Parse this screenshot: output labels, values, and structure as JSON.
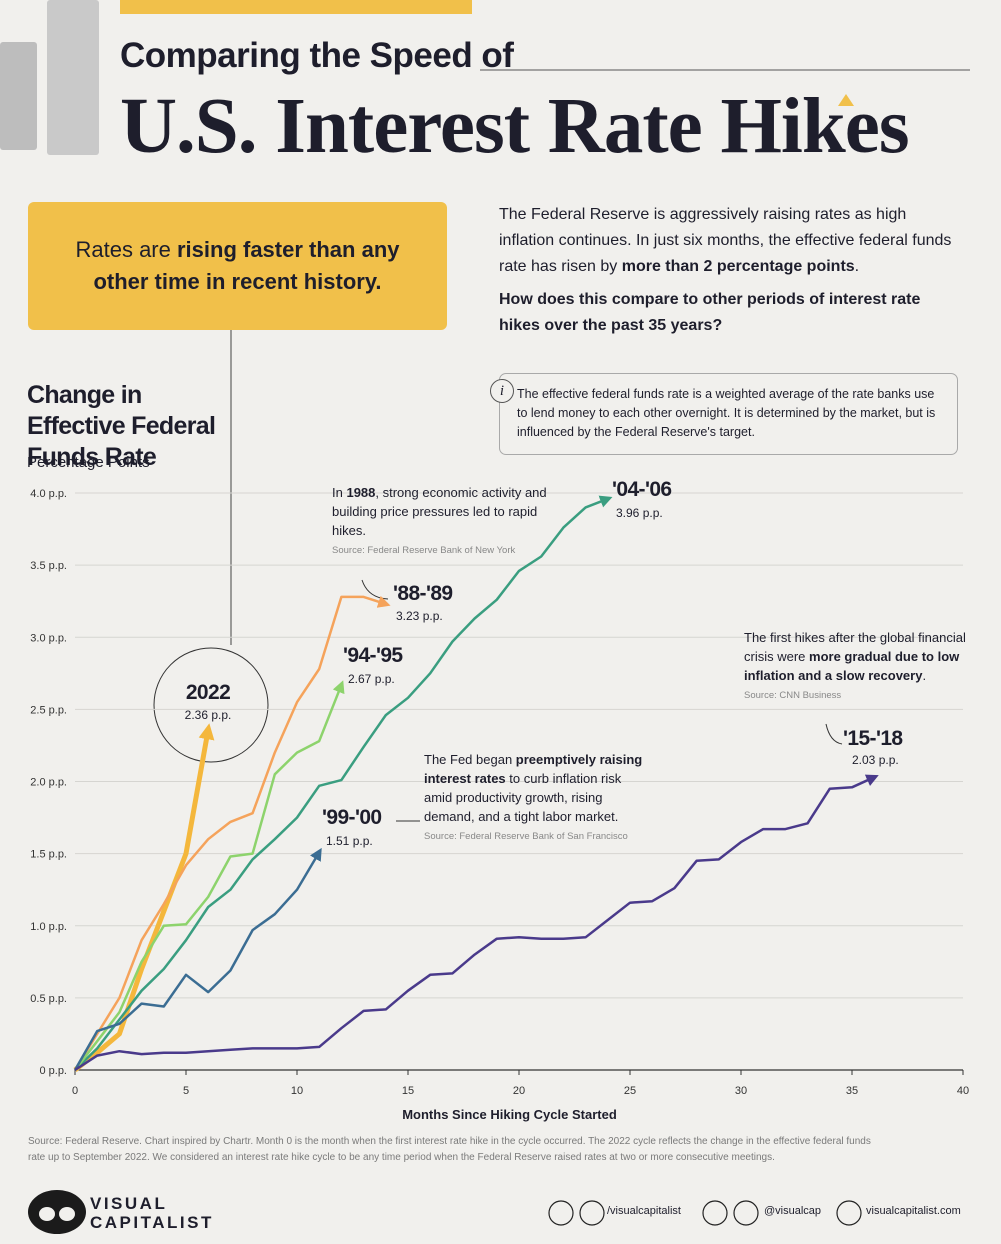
{
  "header": {
    "kicker": "Comparing the Speed of",
    "title": "U.S. Interest Rate Hikes"
  },
  "callout": {
    "parts": [
      "Rates are ",
      "rising faster than any other time in recent history."
    ]
  },
  "intro": {
    "parts": [
      "The Federal Reserve is aggressively raising rates as high inflation continues. In just six months, the effective federal funds rate has risen by ",
      "more than 2 percentage points",
      "."
    ],
    "question": "How does this compare to other periods of interest rate hikes over the past 35 years?"
  },
  "info": {
    "icon": "i",
    "text": "The effective federal funds rate is a weighted average of the rate banks use to lend money to each other overnight. It is determined by the market, but is influenced by the Federal Reserve's target."
  },
  "chart_data": {
    "type": "line",
    "title": "Change in Effective Federal Funds Rate",
    "y_label": "Percentage Points",
    "x_label": "Months Since Hiking Cycle Started",
    "x": [
      0,
      1,
      2,
      3,
      4,
      5,
      6,
      7,
      8,
      9,
      10,
      11,
      12,
      13,
      14,
      15,
      16,
      17,
      18,
      19,
      20,
      21,
      22,
      23,
      24,
      25,
      26,
      27,
      28,
      29,
      30,
      31,
      32,
      33,
      34,
      35,
      36
    ],
    "xlim": [
      0,
      40
    ],
    "xticks": [
      0,
      5,
      10,
      15,
      20,
      25,
      30,
      35,
      40
    ],
    "ylim": [
      0,
      4
    ],
    "yticks": [
      {
        "value": 0,
        "label": "0 p.p."
      },
      {
        "value": 0.5,
        "label": "0.5 p.p."
      },
      {
        "value": 1,
        "label": "1.0 p.p."
      },
      {
        "value": 1.5,
        "label": "1.5 p.p."
      },
      {
        "value": 2,
        "label": "2.0 p.p."
      },
      {
        "value": 2.5,
        "label": "2.5 p.p."
      },
      {
        "value": 3,
        "label": "3.0 p.p."
      },
      {
        "value": 3.5,
        "label": "3.5 p.p."
      },
      {
        "value": 4,
        "label": "4.0 p.p."
      }
    ],
    "grid": true,
    "series": [
      {
        "name": "2022",
        "color": "#f4b73c",
        "values": [
          0,
          0.12,
          0.25,
          0.7,
          1.1,
          1.5,
          2.36,
          null,
          null,
          null,
          null,
          null,
          null,
          null,
          null,
          null,
          null,
          null,
          null,
          null,
          null,
          null,
          null,
          null,
          null,
          null,
          null,
          null,
          null,
          null,
          null,
          null,
          null,
          null,
          null,
          null,
          null
        ],
        "value_labels": [
          null,
          null,
          null,
          null,
          null,
          null,
          "2.36 p.p.",
          null,
          null,
          null,
          null,
          null,
          null,
          null,
          null,
          null,
          null,
          null,
          null,
          null,
          null,
          null,
          null,
          null,
          null,
          null,
          null,
          null,
          null,
          null,
          null,
          null,
          null,
          null,
          null,
          null,
          null
        ]
      },
      {
        "name": "'04-'06",
        "color": "#3a9e80",
        "values": [
          0,
          0.15,
          0.35,
          0.55,
          0.7,
          0.9,
          1.13,
          1.25,
          1.46,
          1.6,
          1.75,
          1.97,
          2.01,
          2.24,
          2.46,
          2.58,
          2.75,
          2.97,
          3.13,
          3.26,
          3.46,
          3.56,
          3.76,
          3.9,
          3.96,
          null,
          null,
          null,
          null,
          null,
          null,
          null,
          null,
          null,
          null,
          null,
          null
        ],
        "value_labels": [
          null,
          null,
          null,
          null,
          null,
          null,
          null,
          null,
          null,
          null,
          null,
          null,
          null,
          null,
          null,
          null,
          null,
          null,
          null,
          null,
          null,
          null,
          null,
          null,
          "3.96 p.p.",
          null,
          null,
          null,
          null,
          null,
          null,
          null,
          null,
          null,
          null,
          null,
          null
        ]
      },
      {
        "name": "'88-'89",
        "color": "#f5a35b",
        "values": [
          0,
          0.25,
          0.5,
          0.9,
          1.15,
          1.42,
          1.6,
          1.72,
          1.78,
          2.2,
          2.55,
          2.78,
          3.28,
          3.28,
          3.23,
          null,
          null,
          null,
          null,
          null,
          null,
          null,
          null,
          null,
          null,
          null,
          null,
          null,
          null,
          null,
          null,
          null,
          null,
          null,
          null,
          null,
          null
        ],
        "value_labels": [
          null,
          null,
          null,
          null,
          null,
          null,
          null,
          null,
          null,
          null,
          null,
          null,
          null,
          null,
          "3.23 p.p.",
          null,
          null,
          null,
          null,
          null,
          null,
          null,
          null,
          null,
          null,
          null,
          null,
          null,
          null,
          null,
          null,
          null,
          null,
          null,
          null,
          null,
          null
        ]
      },
      {
        "name": "'94-'95",
        "color": "#8dd36c",
        "values": [
          0,
          0.2,
          0.4,
          0.75,
          1,
          1.01,
          1.2,
          1.48,
          1.5,
          2.05,
          2.2,
          2.28,
          2.67,
          null,
          null,
          null,
          null,
          null,
          null,
          null,
          null,
          null,
          null,
          null,
          null,
          null,
          null,
          null,
          null,
          null,
          null,
          null,
          null,
          null,
          null,
          null,
          null
        ],
        "value_labels": [
          null,
          null,
          null,
          null,
          null,
          null,
          null,
          null,
          null,
          null,
          null,
          null,
          "2.67 p.p.",
          null,
          null,
          null,
          null,
          null,
          null,
          null,
          null,
          null,
          null,
          null,
          null,
          null,
          null,
          null,
          null,
          null,
          null,
          null,
          null,
          null,
          null,
          null,
          null
        ]
      },
      {
        "name": "'99-'00",
        "color": "#3b6d93",
        "values": [
          0,
          0.27,
          0.32,
          0.46,
          0.44,
          0.66,
          0.54,
          0.69,
          0.97,
          1.08,
          1.25,
          1.51,
          null,
          null,
          null,
          null,
          null,
          null,
          null,
          null,
          null,
          null,
          null,
          null,
          null,
          null,
          null,
          null,
          null,
          null,
          null,
          null,
          null,
          null,
          null,
          null,
          null
        ],
        "value_labels": [
          null,
          null,
          null,
          null,
          null,
          null,
          null,
          null,
          null,
          null,
          null,
          "1.51 p.p.",
          null,
          null,
          null,
          null,
          null,
          null,
          null,
          null,
          null,
          null,
          null,
          null,
          null,
          null,
          null,
          null,
          null,
          null,
          null,
          null,
          null,
          null,
          null,
          null,
          null
        ]
      },
      {
        "name": "'15-'18",
        "color": "#4a3a8b",
        "values": [
          0,
          0.1,
          0.13,
          0.11,
          0.12,
          0.12,
          0.13,
          0.14,
          0.15,
          0.15,
          0.15,
          0.16,
          0.29,
          0.41,
          0.42,
          0.55,
          0.66,
          0.67,
          0.8,
          0.91,
          0.92,
          0.91,
          0.91,
          0.92,
          1.04,
          1.16,
          1.17,
          1.26,
          1.45,
          1.46,
          1.58,
          1.67,
          1.67,
          1.71,
          1.95,
          1.96,
          2.03
        ],
        "value_labels": [
          null,
          null,
          null,
          null,
          null,
          null,
          null,
          null,
          null,
          null,
          null,
          null,
          null,
          null,
          null,
          null,
          null,
          null,
          null,
          null,
          null,
          null,
          null,
          null,
          null,
          null,
          null,
          null,
          null,
          null,
          null,
          null,
          null,
          null,
          null,
          null,
          "2.03 p.p."
        ]
      }
    ],
    "annotations": [
      {
        "parts": [
          "In ",
          "1988",
          ", strong economic activity and building price pressures led to rapid hikes."
        ],
        "source": "Source: Federal Reserve Bank of New York"
      },
      {
        "parts": [
          "The Fed began ",
          "preemptively raising interest rates",
          " to curb inflation risk amid productivity growth, rising demand, and a tight labor market."
        ],
        "source": "Source: Federal Reserve Bank of San Francisco"
      },
      {
        "parts": [
          "The first hikes after the global financial crisis were ",
          "more gradual due to low inflation and a slow recovery",
          "."
        ],
        "source": "Source: CNN Business"
      }
    ]
  },
  "footer": {
    "source": "Source: Federal Reserve. Chart inspired by Chartr. Month 0 is the month when the first interest rate hike in the cycle occurred. The 2022 cycle reflects the change in the effective federal funds rate up to September 2022. We considered an interest rate hike cycle to be any time period when the Federal Reserve raised rates at two or more consecutive meetings.",
    "brand": [
      "VISUAL",
      "CAPITALIST"
    ],
    "handles": [
      "/visualcapitalist",
      "@visualcap",
      "visualcapitalist.com"
    ]
  }
}
